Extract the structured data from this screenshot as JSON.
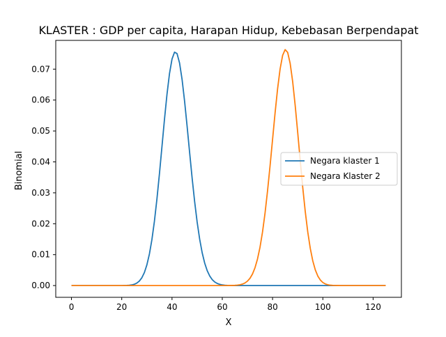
{
  "chart_data": {
    "type": "line",
    "title": "KLASTER : GDP per capita, Harapan Hidup, Kebebasan Berpendapat",
    "xlabel": "X",
    "ylabel": "Binomial",
    "xlim": [
      -6.25,
      131.25
    ],
    "ylim": [
      -0.0038,
      0.0793
    ],
    "xticks": [
      0,
      20,
      40,
      60,
      80,
      100,
      120
    ],
    "xtick_labels": [
      "0",
      "20",
      "40",
      "60",
      "80",
      "100",
      "120"
    ],
    "yticks": [
      0.0,
      0.01,
      0.02,
      0.03,
      0.04,
      0.05,
      0.06,
      0.07
    ],
    "ytick_labels": [
      "0.00",
      "0.01",
      "0.02",
      "0.03",
      "0.04",
      "0.05",
      "0.06",
      "0.07"
    ],
    "grid": false,
    "legend_position": "center-right",
    "x_range": [
      0,
      125
    ],
    "series": [
      {
        "name": "Negara klaster 1",
        "color": "#1f77b4",
        "distribution": "binomial",
        "n": 125,
        "p": 0.332,
        "peak": {
          "x": 41.5,
          "y": 0.0755
        }
      },
      {
        "name": "Negara Klaster 2",
        "color": "#ff7f0e",
        "distribution": "binomial",
        "n": 125,
        "p": 0.68,
        "peak": {
          "x": 85,
          "y": 0.0755
        }
      }
    ]
  }
}
